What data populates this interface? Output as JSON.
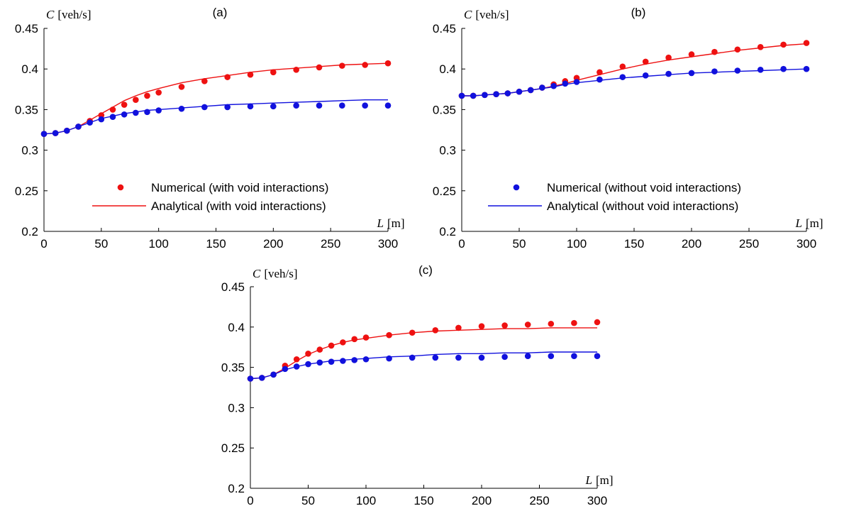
{
  "chart_data": [
    {
      "type": "line+scatter",
      "panel_label": "(a)",
      "ylabel_var": "C",
      "ylabel_unit": "[veh/s]",
      "xlabel_var": "L",
      "xlabel_unit": "[m]",
      "xlim": [
        0,
        300
      ],
      "ylim": [
        0.2,
        0.45
      ],
      "xticks": [
        "0",
        "50",
        "100",
        "150",
        "200",
        "250",
        "300"
      ],
      "yticks": [
        "0.2",
        "0.25",
        "0.3",
        "0.35",
        "0.4",
        "0.45"
      ],
      "grid": false,
      "legend": {
        "position": "bottom",
        "entries": [
          {
            "label": "Numerical (with void interactions)",
            "style": "marker",
            "color": "#ee1111"
          },
          {
            "label": "Analytical (with void interactions)",
            "style": "line",
            "color": "#ee1111"
          }
        ]
      },
      "series": [
        {
          "kind": "scatter",
          "color": "#ee1111",
          "x": [
            0,
            10,
            20,
            30,
            40,
            50,
            60,
            70,
            80,
            90,
            100,
            120,
            140,
            160,
            180,
            200,
            220,
            240,
            260,
            280,
            300
          ],
          "y": [
            0.32,
            0.321,
            0.324,
            0.329,
            0.336,
            0.343,
            0.35,
            0.356,
            0.362,
            0.367,
            0.371,
            0.378,
            0.385,
            0.39,
            0.393,
            0.396,
            0.399,
            0.402,
            0.404,
            0.405,
            0.407
          ]
        },
        {
          "kind": "line",
          "color": "#ee1111",
          "x": [
            0,
            10,
            20,
            30,
            40,
            50,
            60,
            70,
            80,
            90,
            100,
            120,
            140,
            160,
            180,
            200,
            220,
            240,
            260,
            280,
            300
          ],
          "y": [
            0.32,
            0.321,
            0.324,
            0.329,
            0.337,
            0.345,
            0.353,
            0.361,
            0.367,
            0.372,
            0.376,
            0.383,
            0.388,
            0.392,
            0.396,
            0.399,
            0.401,
            0.403,
            0.405,
            0.406,
            0.407
          ]
        },
        {
          "kind": "scatter",
          "color": "#1111dd",
          "x": [
            0,
            10,
            20,
            30,
            40,
            50,
            60,
            70,
            80,
            90,
            100,
            120,
            140,
            160,
            180,
            200,
            220,
            240,
            260,
            280,
            300
          ],
          "y": [
            0.32,
            0.321,
            0.324,
            0.329,
            0.334,
            0.338,
            0.341,
            0.344,
            0.346,
            0.347,
            0.349,
            0.351,
            0.353,
            0.353,
            0.354,
            0.354,
            0.355,
            0.355,
            0.355,
            0.355,
            0.355
          ]
        },
        {
          "kind": "line",
          "color": "#1111dd",
          "x": [
            0,
            10,
            20,
            30,
            40,
            50,
            60,
            70,
            80,
            90,
            100,
            120,
            140,
            160,
            180,
            200,
            220,
            240,
            260,
            280,
            300
          ],
          "y": [
            0.32,
            0.321,
            0.324,
            0.329,
            0.334,
            0.339,
            0.342,
            0.345,
            0.347,
            0.349,
            0.35,
            0.352,
            0.354,
            0.356,
            0.357,
            0.358,
            0.359,
            0.36,
            0.361,
            0.362,
            0.362
          ]
        }
      ]
    },
    {
      "type": "line+scatter",
      "panel_label": "(b)",
      "ylabel_var": "C",
      "ylabel_unit": "[veh/s]",
      "xlabel_var": "L",
      "xlabel_unit": "[m]",
      "xlim": [
        0,
        300
      ],
      "ylim": [
        0.2,
        0.45
      ],
      "xticks": [
        "0",
        "50",
        "100",
        "150",
        "200",
        "250",
        "300"
      ],
      "yticks": [
        "0.2",
        "0.25",
        "0.3",
        "0.35",
        "0.4",
        "0.45"
      ],
      "grid": false,
      "legend": {
        "position": "bottom",
        "entries": [
          {
            "label": "Numerical (without void interactions)",
            "style": "marker",
            "color": "#1111dd"
          },
          {
            "label": "Analytical (without void interactions)",
            "style": "line",
            "color": "#1111dd"
          }
        ]
      },
      "series": [
        {
          "kind": "scatter",
          "color": "#ee1111",
          "x": [
            0,
            10,
            20,
            30,
            40,
            50,
            60,
            70,
            80,
            90,
            100,
            120,
            140,
            160,
            180,
            200,
            220,
            240,
            260,
            280,
            300
          ],
          "y": [
            0.367,
            0.367,
            0.368,
            0.369,
            0.37,
            0.372,
            0.374,
            0.377,
            0.381,
            0.385,
            0.389,
            0.396,
            0.403,
            0.409,
            0.414,
            0.418,
            0.421,
            0.424,
            0.427,
            0.43,
            0.432
          ]
        },
        {
          "kind": "line",
          "color": "#ee1111",
          "x": [
            0,
            10,
            20,
            30,
            40,
            50,
            60,
            70,
            80,
            90,
            100,
            120,
            140,
            160,
            180,
            200,
            220,
            240,
            260,
            280,
            300
          ],
          "y": [
            0.367,
            0.367,
            0.368,
            0.369,
            0.37,
            0.372,
            0.374,
            0.376,
            0.379,
            0.382,
            0.386,
            0.393,
            0.4,
            0.406,
            0.411,
            0.415,
            0.419,
            0.423,
            0.426,
            0.429,
            0.431
          ]
        },
        {
          "kind": "scatter",
          "color": "#1111dd",
          "x": [
            0,
            10,
            20,
            30,
            40,
            50,
            60,
            70,
            80,
            90,
            100,
            120,
            140,
            160,
            180,
            200,
            220,
            240,
            260,
            280,
            300
          ],
          "y": [
            0.367,
            0.367,
            0.368,
            0.369,
            0.37,
            0.372,
            0.374,
            0.377,
            0.379,
            0.382,
            0.384,
            0.387,
            0.39,
            0.392,
            0.394,
            0.395,
            0.397,
            0.398,
            0.399,
            0.4,
            0.4
          ]
        },
        {
          "kind": "line",
          "color": "#1111dd",
          "x": [
            0,
            10,
            20,
            30,
            40,
            50,
            60,
            70,
            80,
            90,
            100,
            120,
            140,
            160,
            180,
            200,
            220,
            240,
            260,
            280,
            300
          ],
          "y": [
            0.367,
            0.367,
            0.368,
            0.369,
            0.37,
            0.372,
            0.374,
            0.376,
            0.378,
            0.381,
            0.383,
            0.386,
            0.389,
            0.391,
            0.393,
            0.395,
            0.396,
            0.397,
            0.398,
            0.399,
            0.4
          ]
        }
      ]
    },
    {
      "type": "line+scatter",
      "panel_label": "(c)",
      "ylabel_var": "C",
      "ylabel_unit": "[veh/s]",
      "xlabel_var": "L",
      "xlabel_unit": "[m]",
      "xlim": [
        0,
        300
      ],
      "ylim": [
        0.2,
        0.45
      ],
      "xticks": [
        "0",
        "50",
        "100",
        "150",
        "200",
        "250",
        "300"
      ],
      "yticks": [
        "0.2",
        "0.25",
        "0.3",
        "0.35",
        "0.4",
        "0.45"
      ],
      "grid": false,
      "legend": null,
      "series": [
        {
          "kind": "scatter",
          "color": "#ee1111",
          "x": [
            0,
            10,
            20,
            30,
            40,
            50,
            60,
            70,
            80,
            90,
            100,
            120,
            140,
            160,
            180,
            200,
            220,
            240,
            260,
            280,
            300
          ],
          "y": [
            0.336,
            0.337,
            0.341,
            0.352,
            0.36,
            0.367,
            0.372,
            0.377,
            0.381,
            0.385,
            0.387,
            0.39,
            0.393,
            0.396,
            0.399,
            0.401,
            0.402,
            0.403,
            0.404,
            0.405,
            0.406
          ]
        },
        {
          "kind": "line",
          "color": "#ee1111",
          "x": [
            0,
            10,
            20,
            30,
            40,
            50,
            60,
            70,
            80,
            90,
            100,
            120,
            140,
            160,
            180,
            200,
            220,
            240,
            260,
            280,
            300
          ],
          "y": [
            0.336,
            0.337,
            0.341,
            0.349,
            0.358,
            0.366,
            0.372,
            0.377,
            0.381,
            0.384,
            0.386,
            0.39,
            0.393,
            0.395,
            0.396,
            0.397,
            0.398,
            0.398,
            0.399,
            0.399,
            0.399
          ]
        },
        {
          "kind": "scatter",
          "color": "#1111dd",
          "x": [
            0,
            10,
            20,
            30,
            40,
            50,
            60,
            70,
            80,
            90,
            100,
            120,
            140,
            160,
            180,
            200,
            220,
            240,
            260,
            280,
            300
          ],
          "y": [
            0.336,
            0.337,
            0.341,
            0.348,
            0.351,
            0.354,
            0.356,
            0.357,
            0.358,
            0.359,
            0.36,
            0.361,
            0.362,
            0.362,
            0.362,
            0.362,
            0.363,
            0.364,
            0.364,
            0.364,
            0.364
          ]
        },
        {
          "kind": "line",
          "color": "#1111dd",
          "x": [
            0,
            10,
            20,
            30,
            40,
            50,
            60,
            70,
            80,
            90,
            100,
            120,
            140,
            160,
            180,
            200,
            220,
            240,
            260,
            280,
            300
          ],
          "y": [
            0.336,
            0.337,
            0.341,
            0.347,
            0.351,
            0.354,
            0.356,
            0.358,
            0.359,
            0.36,
            0.361,
            0.363,
            0.364,
            0.366,
            0.367,
            0.367,
            0.368,
            0.368,
            0.369,
            0.369,
            0.369
          ]
        }
      ]
    }
  ]
}
